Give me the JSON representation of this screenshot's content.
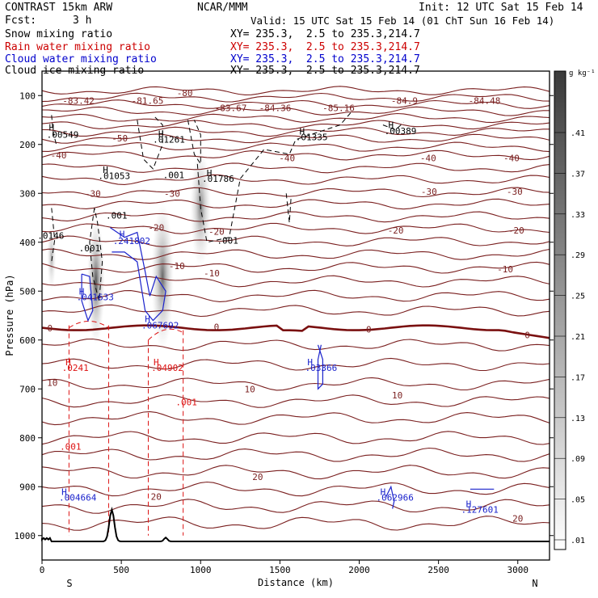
{
  "header": {
    "title": "CONTRAST 15km ARW",
    "fcst_label": "Fcst:",
    "fcst_value": "3 h",
    "org": "NCAR/MMM",
    "init": "Init: 12 UTC Sat 15 Feb 14",
    "valid": "Valid: 15 UTC Sat 15 Feb 14 (01 ChT Sun 16 Feb 14)"
  },
  "fields": [
    {
      "label": "Snow mixing ratio",
      "xy": "XY= 235.3,  2.5 to 235.3,214.7",
      "color": "#000000"
    },
    {
      "label": "Rain water mixing ratio",
      "xy": "XY= 235.3,  2.5 to 235.3,214.7",
      "color": "#cc0000"
    },
    {
      "label": "Cloud water mixing ratio",
      "xy": "XY= 235.3,  2.5 to 235.3,214.7",
      "color": "#0000cc"
    },
    {
      "label": "Cloud ice mixing ratio",
      "xy": "XY= 235.3,  2.5 to 235.3,214.7",
      "color": "#000000"
    }
  ],
  "chart_data": {
    "type": "heatmap",
    "xlabel": "Distance (km)",
    "ylabel": "Pressure (hPa)",
    "xlim": [
      0,
      3200
    ],
    "ylim": [
      1050,
      50
    ],
    "x_ticks": [
      0,
      500,
      1000,
      1500,
      2000,
      2500,
      3000
    ],
    "y_ticks": [
      100,
      200,
      300,
      400,
      500,
      600,
      700,
      800,
      900,
      1000
    ],
    "endpoints": {
      "left": "S",
      "right": "N"
    },
    "colorbar": {
      "unit": "g kg⁻¹",
      "ticks": [
        ".41",
        ".37",
        ".33",
        ".29",
        ".25",
        ".21",
        ".17",
        ".13",
        ".09",
        ".05",
        ".01"
      ],
      "values": [
        0.41,
        0.37,
        0.33,
        0.29,
        0.25,
        0.21,
        0.17,
        0.13,
        0.09,
        0.05,
        0.01
      ]
    },
    "snow_blobs": [
      {
        "x": 60,
        "p": 430,
        "r": 28,
        "h": 70,
        "v": 0.2
      },
      {
        "x": 340,
        "p": 480,
        "r": 55,
        "h": 130,
        "v": 0.4
      },
      {
        "x": 760,
        "p": 470,
        "r": 70,
        "h": 150,
        "v": 0.35
      },
      {
        "x": 1000,
        "p": 330,
        "r": 65,
        "h": 120,
        "v": 0.3
      }
    ],
    "temperature_labels": [
      {
        "text": "-83.42",
        "x": 230,
        "p": 110
      },
      {
        "text": "-81.65",
        "x": 665,
        "p": 110
      },
      {
        "text": "-80",
        "x": 900,
        "p": 95
      },
      {
        "text": "-83.67",
        "x": 1190,
        "p": 125
      },
      {
        "text": "-84.36",
        "x": 1470,
        "p": 125
      },
      {
        "text": "-85.16",
        "x": 1870,
        "p": 125
      },
      {
        "text": "-84.9",
        "x": 2285,
        "p": 110
      },
      {
        "text": "-84.48",
        "x": 2790,
        "p": 110
      },
      {
        "text": "-50",
        "x": 490,
        "p": 187
      },
      {
        "text": "-40",
        "x": 105,
        "p": 222
      },
      {
        "text": "-40",
        "x": 1545,
        "p": 228
      },
      {
        "text": "-40",
        "x": 2435,
        "p": 228
      },
      {
        "text": "-40",
        "x": 2960,
        "p": 228
      },
      {
        "text": "-30",
        "x": 320,
        "p": 300
      },
      {
        "text": "-30",
        "x": 820,
        "p": 300
      },
      {
        "text": "-30",
        "x": 2440,
        "p": 296
      },
      {
        "text": "-30",
        "x": 2980,
        "p": 296
      },
      {
        "text": "-20",
        "x": 720,
        "p": 370
      },
      {
        "text": "-20",
        "x": 1100,
        "p": 378
      },
      {
        "text": "-20",
        "x": 2230,
        "p": 376
      },
      {
        "text": "-20",
        "x": 2990,
        "p": 376
      },
      {
        "text": "-10",
        "x": 850,
        "p": 448
      },
      {
        "text": "-10",
        "x": 1070,
        "p": 463
      },
      {
        "text": "-10",
        "x": 2920,
        "p": 455
      },
      {
        "text": "0",
        "x": 50,
        "p": 576
      },
      {
        "text": "0",
        "x": 1100,
        "p": 573
      },
      {
        "text": "0",
        "x": 2060,
        "p": 578
      },
      {
        "text": "0",
        "x": 3060,
        "p": 590
      },
      {
        "text": "10",
        "x": 65,
        "p": 687
      },
      {
        "text": "10",
        "x": 1310,
        "p": 700
      },
      {
        "text": "10",
        "x": 2240,
        "p": 713
      },
      {
        "text": "20",
        "x": 720,
        "p": 920
      },
      {
        "text": "20",
        "x": 1360,
        "p": 880
      },
      {
        "text": "20",
        "x": 3000,
        "p": 965
      }
    ],
    "snow_extrema": [
      {
        "text": "H",
        "x": 60,
        "p": 165
      },
      {
        "text": ".00549",
        "x": 130,
        "p": 180
      },
      {
        "text": "H",
        "x": 400,
        "p": 252
      },
      {
        "text": ".01053",
        "x": 455,
        "p": 264
      },
      {
        "text": ".001",
        "x": 470,
        "p": 345
      },
      {
        "text": ".001",
        "x": 300,
        "p": 412
      },
      {
        "text": ".0146",
        "x": 55,
        "p": 386
      },
      {
        "text": "H",
        "x": 750,
        "p": 178
      },
      {
        "text": ".01261",
        "x": 800,
        "p": 190
      },
      {
        "text": ".001",
        "x": 830,
        "p": 262
      },
      {
        "text": "H",
        "x": 1055,
        "p": 258
      },
      {
        "text": ".01786",
        "x": 1110,
        "p": 270
      },
      {
        "text": ".001",
        "x": 1170,
        "p": 396
      },
      {
        "text": "H",
        "x": 1640,
        "p": 173
      },
      {
        "text": ".01335",
        "x": 1700,
        "p": 185
      },
      {
        "text": "H",
        "x": 2200,
        "p": 160
      },
      {
        "text": ".00389",
        "x": 2260,
        "p": 172
      }
    ],
    "cloud_water_extrema": [
      {
        "text": "H",
        "x": 250,
        "p": 500
      },
      {
        "text": ".041633",
        "x": 335,
        "p": 512
      },
      {
        "text": "H",
        "x": 505,
        "p": 383
      },
      {
        "text": ".241802",
        "x": 565,
        "p": 397
      },
      {
        "text": "H",
        "x": 665,
        "p": 557
      },
      {
        "text": ".067692",
        "x": 745,
        "p": 570
      },
      {
        "text": "H",
        "x": 1690,
        "p": 645
      },
      {
        "text": ".03366",
        "x": 1760,
        "p": 657
      },
      {
        "text": "H",
        "x": 140,
        "p": 910
      },
      {
        "text": ".004664",
        "x": 225,
        "p": 922
      },
      {
        "text": "H",
        "x": 2150,
        "p": 910
      },
      {
        "text": ".062966",
        "x": 2225,
        "p": 922
      },
      {
        "text": "H",
        "x": 2690,
        "p": 935
      },
      {
        "text": ".127601",
        "x": 2760,
        "p": 947
      }
    ],
    "rain_extrema": [
      {
        "text": "H",
        "x": 165,
        "p": 645
      },
      {
        "text": ".0241",
        "x": 210,
        "p": 657
      },
      {
        "text": "H",
        "x": 720,
        "p": 645
      },
      {
        "text": ".04902",
        "x": 790,
        "p": 657
      },
      {
        "text": ".001",
        "x": 910,
        "p": 727
      },
      {
        "text": ".001",
        "x": 180,
        "p": 818
      }
    ]
  }
}
